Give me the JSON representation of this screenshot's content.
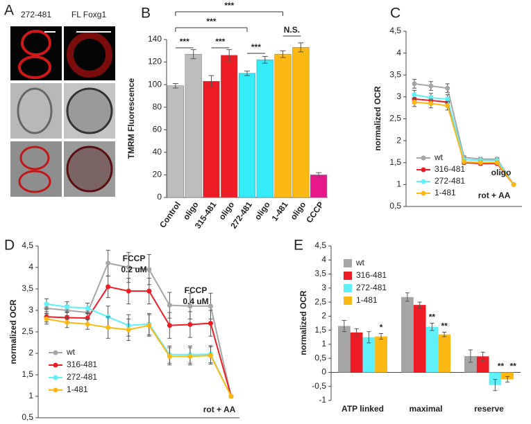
{
  "image_panel": {
    "panel_label": "A",
    "columns": [
      "272-481",
      "FL Foxg1"
    ]
  },
  "chart_data": [
    {
      "type": "bar",
      "panel_label": "B",
      "y_label": "TMRM  Fluorescence",
      "categories": [
        "Control",
        "oligo",
        "315-481",
        "oligo",
        "272-481",
        "oligo",
        "1-481",
        "oligo",
        "CCCP"
      ],
      "values": [
        99,
        127,
        103,
        126,
        110,
        122,
        127,
        133,
        20
      ],
      "errors": [
        2,
        4,
        5,
        5,
        2,
        3,
        3,
        4,
        2
      ],
      "colors": [
        "#bdbdbd",
        "#bdbdbd",
        "#ee1c25",
        "#ee1c25",
        "#33ecf7",
        "#33ecf7",
        "#fdb913",
        "#fdb913",
        "#e8178a"
      ],
      "annotations": [
        "***",
        "***",
        "***",
        "***",
        "***",
        "N.S."
      ],
      "ylim": [
        0,
        140
      ],
      "yticks": [
        0,
        20,
        40,
        60,
        80,
        100,
        120,
        140
      ]
    },
    {
      "type": "line",
      "panel_label": "C",
      "y_label": "normalized OCR",
      "categories": [
        null,
        null,
        null,
        null,
        null,
        null,
        null
      ],
      "series": [
        {
          "name": "wt",
          "color": "#a6a6a6",
          "values": [
            3.3,
            3.25,
            3.2,
            1.62,
            1.58,
            1.58,
            1.0
          ],
          "errors": [
            0.1,
            0.1,
            0.1,
            0.04,
            0.04,
            0.04,
            0
          ]
        },
        {
          "name": "316-481",
          "color": "#ee1c25",
          "values": [
            2.95,
            2.92,
            2.88,
            1.5,
            1.48,
            1.48,
            1.0
          ],
          "errors": [
            0.1,
            0.1,
            0.1,
            0.04,
            0.04,
            0.04,
            0
          ]
        },
        {
          "name": "272-481",
          "color": "#5ff0fa",
          "values": [
            3.05,
            2.98,
            2.95,
            1.57,
            1.55,
            1.55,
            1.0
          ],
          "errors": [
            0.1,
            0.1,
            0.1,
            0.04,
            0.04,
            0.04,
            0
          ]
        },
        {
          "name": "1-481",
          "color": "#fdb913",
          "values": [
            2.88,
            2.85,
            2.8,
            1.52,
            1.5,
            1.5,
            1.0
          ],
          "errors": [
            0.1,
            0.1,
            0.1,
            0.04,
            0.04,
            0.04,
            0
          ]
        }
      ],
      "annotations": [
        "oligo",
        "rot + AA"
      ],
      "ylim": [
        0.5,
        4.5
      ],
      "yticks": [
        {
          "value": 0.5,
          "label": "0,5"
        },
        1,
        {
          "value": 1.5,
          "label": "1,5"
        },
        2,
        {
          "value": 2.5,
          "label": "2,5"
        },
        3,
        {
          "value": 3.5,
          "label": "3,5"
        },
        4,
        {
          "value": 4.5,
          "label": "4,5"
        }
      ]
    },
    {
      "type": "line",
      "panel_label": "D",
      "y_label": "normalized OCR",
      "categories": [
        null,
        null,
        null,
        null,
        null,
        null,
        null,
        null,
        null,
        null
      ],
      "series": [
        {
          "name": "wt",
          "color": "#a6a6a6",
          "values": [
            3.05,
            3.0,
            2.95,
            4.1,
            4.0,
            3.95,
            3.12,
            3.1,
            3.1,
            1.0
          ],
          "errors": [
            0.12,
            0.12,
            0.12,
            0.3,
            0.35,
            0.35,
            0.3,
            0.3,
            0.3,
            0
          ]
        },
        {
          "name": "316-481",
          "color": "#ee1c25",
          "values": [
            2.85,
            2.83,
            2.82,
            3.55,
            3.45,
            3.45,
            2.65,
            2.67,
            2.7,
            1.0
          ],
          "errors": [
            0.12,
            0.12,
            0.12,
            0.25,
            0.3,
            0.3,
            0.3,
            0.3,
            0.3,
            0
          ]
        },
        {
          "name": "272-481",
          "color": "#5ff0fa",
          "values": [
            3.15,
            3.08,
            3.05,
            2.85,
            2.65,
            2.68,
            1.97,
            1.97,
            1.98,
            1.0
          ],
          "errors": [
            0.12,
            0.12,
            0.12,
            0.25,
            0.25,
            0.25,
            0.2,
            0.2,
            0.2,
            0
          ]
        },
        {
          "name": "1-481",
          "color": "#fdb913",
          "values": [
            2.8,
            2.72,
            2.68,
            2.6,
            2.55,
            2.65,
            1.93,
            1.93,
            1.95,
            1.0
          ],
          "errors": [
            0.12,
            0.12,
            0.12,
            0.25,
            0.25,
            0.25,
            0.2,
            0.2,
            0.2,
            0
          ]
        }
      ],
      "annotations": [
        "FCCP",
        "0.2 uM",
        "FCCP",
        "0.4 uM",
        "rot + AA"
      ],
      "ylim": [
        0.5,
        4.5
      ],
      "yticks": [
        {
          "value": 0.5,
          "label": "0,5"
        },
        1,
        {
          "value": 1.5,
          "label": "1,5"
        },
        2,
        {
          "value": 2.5,
          "label": "2,5"
        },
        3,
        {
          "value": 3.5,
          "label": "3,5"
        },
        4,
        {
          "value": 4.5,
          "label": "4,5"
        }
      ]
    },
    {
      "type": "grouped_bar",
      "panel_label": "E",
      "y_label": "normalized OCR",
      "categories": [
        "ATP linked",
        "maximal",
        "reserve"
      ],
      "series": [
        {
          "name": "wt",
          "color": "#a6a6a6",
          "values": [
            1.65,
            2.68,
            0.58
          ],
          "errors": [
            0.2,
            0.15,
            0.22
          ],
          "significance": [
            null,
            null,
            null
          ]
        },
        {
          "name": "316-481",
          "color": "#ee1c25",
          "values": [
            1.42,
            2.4,
            0.57
          ],
          "errors": [
            0.13,
            0.1,
            0.15
          ],
          "significance": [
            null,
            null,
            null
          ]
        },
        {
          "name": "272-481",
          "color": "#5ff0fa",
          "values": [
            1.25,
            1.62,
            -0.45
          ],
          "errors": [
            0.2,
            0.13,
            0.2
          ],
          "significance": [
            null,
            "**",
            "**"
          ]
        },
        {
          "name": "1-481",
          "color": "#fdb913",
          "values": [
            1.28,
            1.35,
            -0.25
          ],
          "errors": [
            0.1,
            0.08,
            0.1
          ],
          "significance": [
            "*",
            "**",
            "**"
          ]
        }
      ],
      "ylim": [
        -1,
        4.5
      ],
      "yticks": [
        -1,
        {
          "value": -0.5,
          "label": "-0,5"
        },
        0,
        {
          "value": 0.5,
          "label": "0,5"
        },
        1,
        {
          "value": 1.5,
          "label": "1,5"
        },
        2,
        {
          "value": 2.5,
          "label": "2,5"
        },
        3,
        {
          "value": 3.5,
          "label": "3,5"
        },
        4,
        {
          "value": 4.5,
          "label": "4,5"
        }
      ]
    }
  ]
}
